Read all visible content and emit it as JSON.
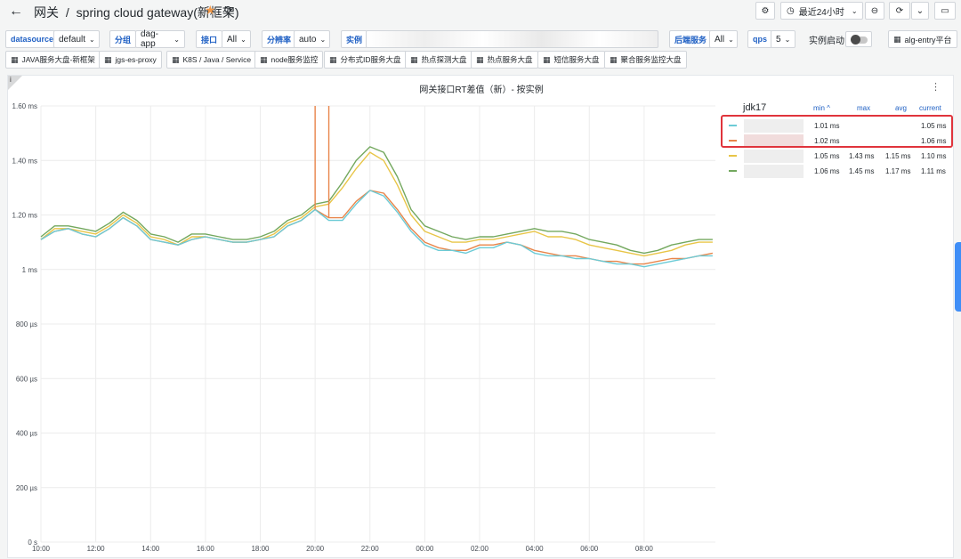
{
  "header": {
    "back_icon": "arrow-left-icon",
    "folder": "网关",
    "separator": "/",
    "title": "spring cloud gateway(新框架)",
    "time_range": "最近24小时"
  },
  "variables": {
    "datasource": {
      "label": "datasource",
      "value": "default"
    },
    "group": {
      "label": "分组",
      "value": "dag-app"
    },
    "interface": {
      "label": "接口",
      "value": "All"
    },
    "resolution": {
      "label": "分辨率",
      "value": "auto"
    },
    "instance": {
      "label": "实例"
    },
    "backend": {
      "label": "后端服务",
      "value": "All"
    },
    "qps": {
      "label": "qps",
      "value": "5"
    },
    "instance_start": {
      "label": "实例启动"
    },
    "alg_link": "alg-entry平台"
  },
  "dashboard_links": [
    "JAVA服务大盘-新框架",
    "jgs-es-proxy",
    "K8S / Java / Service",
    "node服务监控",
    "分布式ID服务大盘",
    "热点探测大盘",
    "热点服务大盘",
    "短信服务大盘",
    "聚合服务监控大盘"
  ],
  "panel": {
    "title": "网关接口RT差值（新）- 按实例",
    "info": "i"
  },
  "legend": {
    "group_title": "jdk17",
    "columns": {
      "min": "min ^",
      "max": "max",
      "avg": "avg",
      "current": "current"
    },
    "rows": [
      {
        "color": "#6ccbd6",
        "min": "1.01 ms",
        "max": "",
        "avg": "",
        "current": "1.05 ms"
      },
      {
        "color": "#e8854a",
        "min": "1.02 ms",
        "max": "",
        "avg": "",
        "current": "1.06 ms"
      },
      {
        "color": "#e8c547",
        "min": "1.05 ms",
        "max": "1.43 ms",
        "avg": "1.15 ms",
        "current": "1.10 ms"
      },
      {
        "color": "#73a85e",
        "min": "1.06 ms",
        "max": "1.45 ms",
        "avg": "1.17 ms",
        "current": "1.11 ms"
      }
    ]
  },
  "chart_data": {
    "type": "line",
    "y_ticks": [
      "0 s",
      "200 µs",
      "400 µs",
      "600 µs",
      "800 µs",
      "1 ms",
      "1.20 ms",
      "1.40 ms",
      "1.60 ms"
    ],
    "ylim": [
      0,
      1.6
    ],
    "x_ticks": [
      "10:00",
      "12:00",
      "14:00",
      "16:00",
      "18:00",
      "20:00",
      "22:00",
      "00:00",
      "02:00",
      "04:00",
      "06:00",
      "08:00"
    ],
    "xlim": [
      0,
      24.6
    ],
    "grid": true,
    "series": [
      {
        "color": "#73a85e",
        "x": [
          0,
          0.5,
          1,
          1.5,
          2,
          2.5,
          3,
          3.5,
          4,
          4.5,
          5,
          5.5,
          6,
          6.5,
          7,
          7.5,
          8,
          8.5,
          9,
          9.5,
          10,
          10.5,
          11,
          11.5,
          12,
          12.5,
          13,
          13.5,
          14,
          14.5,
          15,
          15.5,
          16,
          16.5,
          17,
          17.5,
          18,
          18.5,
          19,
          19.5,
          20,
          20.5,
          21,
          21.5,
          22,
          22.5,
          23,
          23.5,
          24,
          24.5
        ],
        "y": [
          1.12,
          1.16,
          1.16,
          1.15,
          1.14,
          1.17,
          1.21,
          1.18,
          1.13,
          1.12,
          1.1,
          1.13,
          1.13,
          1.12,
          1.11,
          1.11,
          1.12,
          1.14,
          1.18,
          1.2,
          1.24,
          1.25,
          1.32,
          1.4,
          1.45,
          1.43,
          1.34,
          1.22,
          1.16,
          1.14,
          1.12,
          1.11,
          1.12,
          1.12,
          1.13,
          1.14,
          1.15,
          1.14,
          1.14,
          1.13,
          1.11,
          1.1,
          1.09,
          1.07,
          1.06,
          1.07,
          1.09,
          1.1,
          1.11,
          1.11
        ]
      },
      {
        "color": "#e8c547",
        "x": [
          0,
          0.5,
          1,
          1.5,
          2,
          2.5,
          3,
          3.5,
          4,
          4.5,
          5,
          5.5,
          6,
          6.5,
          7,
          7.5,
          8,
          8.5,
          9,
          9.5,
          10,
          10.5,
          11,
          11.5,
          12,
          12.5,
          13,
          13.5,
          14,
          14.5,
          15,
          15.5,
          16,
          16.5,
          17,
          17.5,
          18,
          18.5,
          19,
          19.5,
          20,
          20.5,
          21,
          21.5,
          22,
          22.5,
          23,
          23.5,
          24,
          24.5
        ],
        "y": [
          1.11,
          1.15,
          1.15,
          1.14,
          1.13,
          1.16,
          1.2,
          1.17,
          1.12,
          1.11,
          1.09,
          1.12,
          1.12,
          1.11,
          1.1,
          1.1,
          1.11,
          1.13,
          1.17,
          1.19,
          1.23,
          1.24,
          1.3,
          1.37,
          1.43,
          1.4,
          1.31,
          1.2,
          1.14,
          1.12,
          1.1,
          1.1,
          1.11,
          1.11,
          1.12,
          1.13,
          1.14,
          1.12,
          1.12,
          1.11,
          1.09,
          1.08,
          1.07,
          1.06,
          1.05,
          1.06,
          1.07,
          1.09,
          1.1,
          1.1
        ]
      },
      {
        "color": "#e8854a",
        "x": [
          0,
          0.5,
          1,
          1.5,
          2,
          2.5,
          3,
          3.5,
          4,
          4.5,
          5,
          5.5,
          6,
          6.5,
          7,
          7.5,
          8,
          8.5,
          9,
          9.5,
          10,
          10.5,
          11,
          11.5,
          12,
          12.5,
          13,
          13.5,
          14,
          14.5,
          15,
          15.5,
          16,
          16.5,
          17,
          17.5,
          18,
          18.5,
          19,
          19.5,
          20,
          20.5,
          21,
          21.5,
          22,
          22.5,
          23,
          23.5,
          24,
          24.5
        ],
        "y": [
          1.11,
          1.14,
          1.15,
          1.13,
          1.12,
          1.15,
          1.19,
          1.16,
          1.11,
          1.1,
          1.09,
          1.11,
          1.12,
          1.11,
          1.1,
          1.1,
          1.11,
          1.12,
          1.16,
          1.18,
          1.22,
          1.19,
          1.19,
          1.25,
          1.29,
          1.28,
          1.22,
          1.15,
          1.1,
          1.08,
          1.07,
          1.07,
          1.09,
          1.09,
          1.1,
          1.09,
          1.07,
          1.06,
          1.05,
          1.05,
          1.04,
          1.03,
          1.03,
          1.02,
          1.02,
          1.03,
          1.04,
          1.04,
          1.05,
          1.06
        ]
      },
      {
        "color": "#6ccbd6",
        "x": [
          0,
          0.5,
          1,
          1.5,
          2,
          2.5,
          3,
          3.5,
          4,
          4.5,
          5,
          5.5,
          6,
          6.5,
          7,
          7.5,
          8,
          8.5,
          9,
          9.5,
          10,
          10.5,
          11,
          11.5,
          12,
          12.5,
          13,
          13.5,
          14,
          14.5,
          15,
          15.5,
          16,
          16.5,
          17,
          17.5,
          18,
          18.5,
          19,
          19.5,
          20,
          20.5,
          21,
          21.5,
          22,
          22.5,
          23,
          23.5,
          24,
          24.5
        ],
        "y": [
          1.11,
          1.14,
          1.15,
          1.13,
          1.12,
          1.15,
          1.19,
          1.16,
          1.11,
          1.1,
          1.09,
          1.11,
          1.12,
          1.11,
          1.1,
          1.1,
          1.11,
          1.12,
          1.16,
          1.18,
          1.22,
          1.18,
          1.18,
          1.24,
          1.29,
          1.27,
          1.21,
          1.14,
          1.09,
          1.07,
          1.07,
          1.06,
          1.08,
          1.08,
          1.1,
          1.09,
          1.06,
          1.05,
          1.05,
          1.04,
          1.04,
          1.03,
          1.02,
          1.02,
          1.01,
          1.02,
          1.03,
          1.04,
          1.05,
          1.05
        ]
      }
    ],
    "spikes": [
      {
        "color": "#e8854a",
        "x": 10.0,
        "y_top": 1.6
      },
      {
        "color": "#e8854a",
        "x": 10.5,
        "y_top": 1.6
      }
    ]
  }
}
